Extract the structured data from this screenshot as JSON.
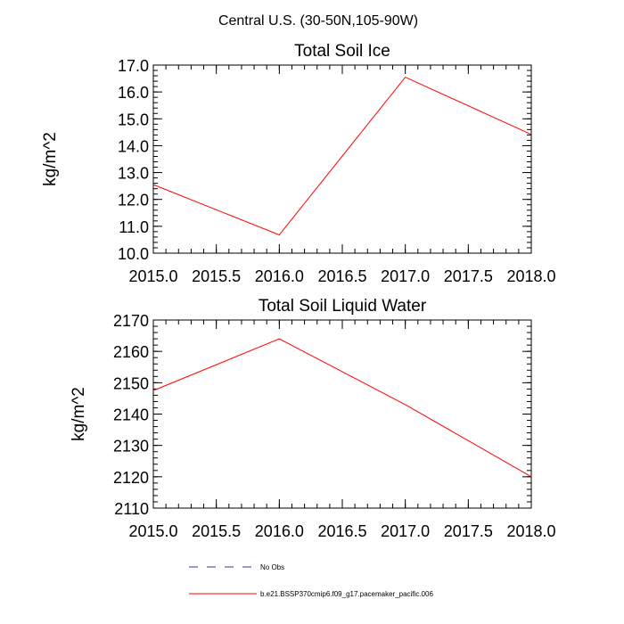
{
  "main_title": "Central U.S. (30-50N,105-90W)",
  "chart_data": [
    {
      "type": "line",
      "title": "Total Soil Ice",
      "xlabel": "",
      "ylabel": "kg/m^2",
      "xlim": [
        2015.0,
        2018.0
      ],
      "ylim": [
        10.0,
        17.0
      ],
      "xticks": [
        "2015.0",
        "2015.5",
        "2016.0",
        "2016.5",
        "2017.0",
        "2017.5",
        "2018.0"
      ],
      "xtick_values": [
        2015.0,
        2015.5,
        2016.0,
        2016.5,
        2017.0,
        2017.5,
        2018.0
      ],
      "yticks": [
        "10.0",
        "11.0",
        "12.0",
        "13.0",
        "14.0",
        "15.0",
        "16.0",
        "17.0"
      ],
      "ytick_values": [
        10,
        11,
        12,
        13,
        14,
        15,
        16,
        17
      ],
      "series": [
        {
          "name": "b.e21.BSSP370cmip6.f09_g17.pacemaker_pacific.006",
          "color": "#ff0000",
          "x": [
            2015,
            2016,
            2017,
            2018
          ],
          "y": [
            12.55,
            10.68,
            16.55,
            14.42
          ]
        }
      ]
    },
    {
      "type": "line",
      "title": "Total Soil Liquid Water",
      "xlabel": "",
      "ylabel": "kg/m^2",
      "xlim": [
        2015.0,
        2018.0
      ],
      "ylim": [
        2110,
        2170
      ],
      "xticks": [
        "2015.0",
        "2015.5",
        "2016.0",
        "2016.5",
        "2017.0",
        "2017.5",
        "2018.0"
      ],
      "xtick_values": [
        2015.0,
        2015.5,
        2016.0,
        2016.5,
        2017.0,
        2017.5,
        2018.0
      ],
      "yticks": [
        "2110",
        "2120",
        "2130",
        "2140",
        "2150",
        "2160",
        "2170"
      ],
      "ytick_values": [
        2110,
        2120,
        2130,
        2140,
        2150,
        2160,
        2170
      ],
      "series": [
        {
          "name": "b.e21.BSSP370cmip6.f09_g17.pacemaker_pacific.006",
          "color": "#ff0000",
          "x": [
            2015,
            2016,
            2017,
            2018
          ],
          "y": [
            2147.5,
            2164.0,
            2143.0,
            2120.0
          ]
        }
      ]
    }
  ],
  "legend": {
    "items": [
      {
        "label": "No Obs",
        "color": "#3333aa",
        "style": "dashed"
      },
      {
        "label": "b.e21.BSSP370cmip6.f09_g17.pacemaker_pacific.006",
        "color": "#ff0000",
        "style": "solid"
      }
    ]
  }
}
